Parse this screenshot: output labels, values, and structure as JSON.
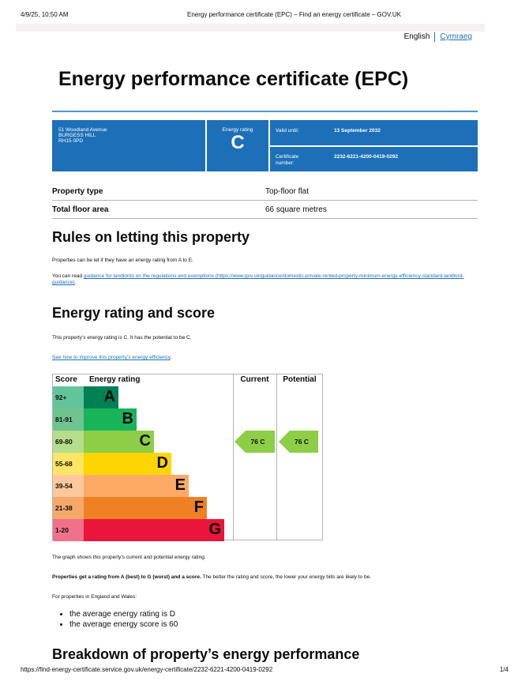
{
  "browser_header": {
    "datetime": "4/9/25, 10:50 AM",
    "page_title": "Energy performance certificate (EPC) – Find an energy certificate – GOV.UK"
  },
  "language": {
    "current": "English",
    "other": "Cymraeg"
  },
  "title": "Energy performance certificate (EPC)",
  "summary": {
    "address": [
      "51 Woodland Avenue",
      "BURGESS HILL",
      "RH15 0PD"
    ],
    "rating_label": "Energy rating",
    "rating": "C",
    "valid_label": "Valid until:",
    "valid_value": "13 September 2032",
    "cert_label": "Certificate number:",
    "cert_value": "2232-6221-4200-0419-0292",
    "color": "#1d70b8"
  },
  "property": [
    {
      "key": "Property type",
      "value": "Top-floor flat"
    },
    {
      "key": "Total floor area",
      "value": "66 square metres"
    }
  ],
  "rules": {
    "heading": "Rules on letting this property",
    "p1": "Properties can be let if they have an energy rating from A to E.",
    "p2_prefix": "You can read ",
    "p2_link": "guidance for landlords on the regulations and exemptions (https://www.gov.uk/guidance/domestic-private-rented-property-minimum-energy-efficiency-standard-landlord-guidance)",
    "p2_suffix": "."
  },
  "rating_section": {
    "heading": "Energy rating and score",
    "p1": "This property’s energy rating is C. It has the potential to be C.",
    "link": "See how to improve this property’s energy efficiency",
    "link_suffix": "."
  },
  "chart_data": {
    "type": "table",
    "headers": [
      "Score",
      "Energy rating",
      "Current",
      "Potential"
    ],
    "bands": [
      {
        "score": "92+",
        "letter": "A",
        "color": "#008054",
        "score_bg": "#62c49b"
      },
      {
        "score": "81-91",
        "letter": "B",
        "color": "#19b459",
        "score_bg": "#6fc38f"
      },
      {
        "score": "69-80",
        "letter": "C",
        "color": "#8dce46",
        "score_bg": "#b5dd8b"
      },
      {
        "score": "55-68",
        "letter": "D",
        "color": "#ffd500",
        "score_bg": "#ffe566"
      },
      {
        "score": "39-54",
        "letter": "E",
        "color": "#fcaa65",
        "score_bg": "#fdc89b"
      },
      {
        "score": "21-38",
        "letter": "F",
        "color": "#ef8023",
        "score_bg": "#f4a86a"
      },
      {
        "score": "1-20",
        "letter": "G",
        "color": "#e9153b",
        "score_bg": "#f0718a"
      }
    ],
    "current": {
      "score": 76,
      "letter": "C",
      "label": "76 C"
    },
    "potential": {
      "score": 76,
      "letter": "C",
      "label": "76 C"
    }
  },
  "after_chart": {
    "p1": "The graph shows this property’s current and potential energy rating.",
    "p2_bold": "Properties get a rating from A (best) to G (worst) and a score.",
    "p2_rest": " The better the rating and score, the lower your energy bills are likely to be.",
    "p3": "For properties in England and Wales:",
    "bullets": [
      "the average energy rating is D",
      "the average energy score is 60"
    ]
  },
  "breakdown_heading": "Breakdown of property’s energy performance",
  "footer": {
    "url": "https://find-energy-certificate.service.gov.uk/energy-certificate/2232-6221-4200-0419-0292",
    "page": "1/4"
  }
}
